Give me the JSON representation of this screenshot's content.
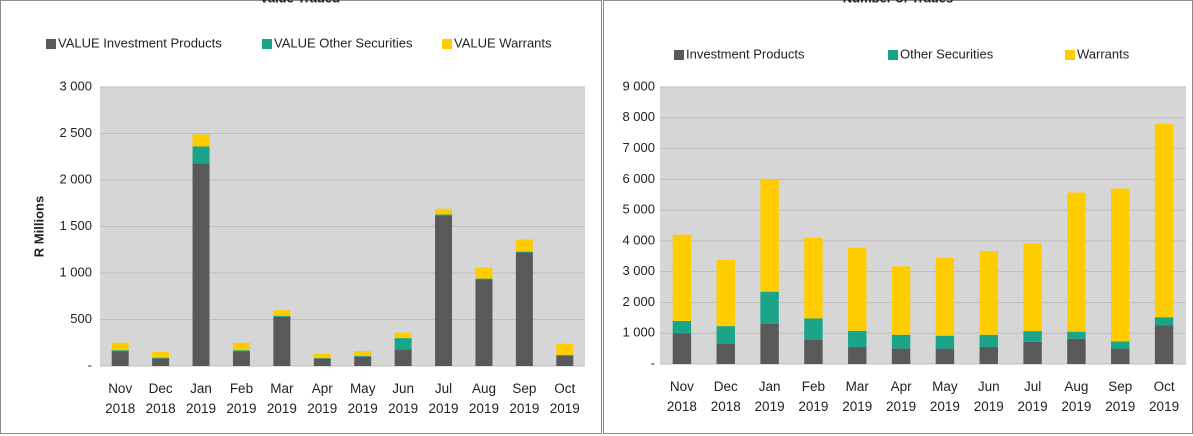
{
  "chart_data": [
    {
      "type": "bar",
      "stacked": true,
      "title": "Value Traded",
      "ylabel": "R Millions",
      "categories": [
        "Nov 2018",
        "Dec 2018",
        "Jan 2019",
        "Feb 2019",
        "Mar 2019",
        "Apr 2019",
        "May 2019",
        "Jun 2019",
        "Jul 2019",
        "Aug 2019",
        "Sep 2019",
        "Oct 2019"
      ],
      "series": [
        {
          "name": "VALUE Investment Products",
          "color": "#595959",
          "values": [
            160,
            80,
            2180,
            160,
            530,
            80,
            100,
            180,
            1620,
            930,
            1220,
            110
          ]
        },
        {
          "name": "VALUE Other Securities",
          "color": "#1aa58a",
          "values": [
            10,
            10,
            180,
            10,
            10,
            5,
            10,
            120,
            10,
            10,
            10,
            10
          ]
        },
        {
          "name": "VALUE Warrants",
          "color": "#ffcc00",
          "values": [
            80,
            60,
            130,
            80,
            60,
            45,
            50,
            60,
            60,
            120,
            130,
            120
          ]
        }
      ],
      "ylim": [
        0,
        3000
      ],
      "yticks": [
        {
          "value": 0,
          "label": "-"
        },
        500,
        {
          "value": 1000,
          "label": "1 000"
        },
        {
          "value": 1500,
          "label": "1 500"
        },
        {
          "value": 2000,
          "label": "2 000"
        },
        {
          "value": 2500,
          "label": "2 500"
        },
        {
          "value": 3000,
          "label": "3 000"
        }
      ],
      "legend": "top"
    },
    {
      "type": "bar",
      "stacked": true,
      "title": "Number of Trades",
      "categories": [
        "Nov 2018",
        "Dec 2018",
        "Jan 2019",
        "Feb 2019",
        "Mar 2019",
        "Apr 2019",
        "May 2019",
        "Jun 2019",
        "Jul 2019",
        "Aug 2019",
        "Sep 2019",
        "Oct 2019"
      ],
      "series": [
        {
          "name": "Investment Products",
          "color": "#595959",
          "values": [
            1000,
            650,
            1300,
            780,
            550,
            500,
            500,
            550,
            720,
            820,
            500,
            1250
          ]
        },
        {
          "name": "Other Securities",
          "color": "#1aa58a",
          "values": [
            400,
            580,
            1050,
            700,
            530,
            450,
            420,
            400,
            350,
            230,
            230,
            270
          ]
        },
        {
          "name": "Warrants",
          "color": "#ffcc00",
          "values": [
            2800,
            2150,
            3650,
            2620,
            2700,
            2220,
            2530,
            2720,
            2850,
            4520,
            4970,
            6280
          ]
        }
      ],
      "ylim": [
        0,
        9000
      ],
      "yticks": [
        {
          "value": 0,
          "label": "-"
        },
        {
          "value": 1000,
          "label": "1 000"
        },
        {
          "value": 2000,
          "label": "2 000"
        },
        {
          "value": 3000,
          "label": "3 000"
        },
        {
          "value": 4000,
          "label": "4 000"
        },
        {
          "value": 5000,
          "label": "5 000"
        },
        {
          "value": 6000,
          "label": "6 000"
        },
        {
          "value": 7000,
          "label": "7 000"
        },
        {
          "value": 8000,
          "label": "8 000"
        },
        {
          "value": 9000,
          "label": "9 000"
        }
      ],
      "legend": "top"
    }
  ]
}
